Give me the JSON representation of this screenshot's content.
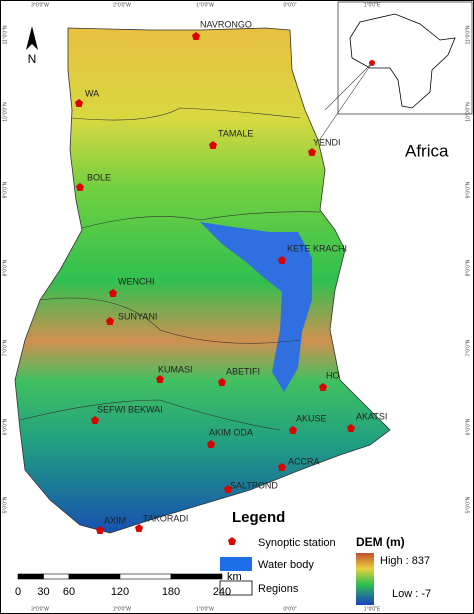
{
  "map": {
    "north": "N",
    "inset_label": "Africa",
    "stations": [
      "NAVRONGO",
      "WA",
      "TAMALE",
      "YENDI",
      "BOLE",
      "KETE KRACHI",
      "WENCHI",
      "SUNYANI",
      "KUMASI",
      "ABETIFI",
      "HO",
      "SEFWI BEKWAI",
      "AKATSI",
      "AKUSE",
      "AKIM ODA",
      "ACCRA",
      "SALTPOND",
      "AXIM",
      "TAKORADI"
    ],
    "legend": {
      "title": "Legend",
      "station": "Synoptic station",
      "water": "Water body",
      "regions": "Regions",
      "dem_title": "DEM (m)",
      "high": "High : 837",
      "low": "Low : -7"
    },
    "scale": {
      "ticks": [
        0,
        30,
        60,
        120,
        180,
        240
      ],
      "unit": "km"
    },
    "graticule": {
      "top": [
        "3°0'0\"W",
        "2°0'0\"W",
        "1°0'0\"W",
        "0°0'0\"",
        "1°0'0\"E"
      ],
      "left": [
        "11°0'0\"N",
        "10°0'0\"N",
        "9°0'0\"N",
        "8°0'0\"N",
        "7°0'0\"N",
        "6°0'0\"N",
        "5°0'0\"N"
      ]
    }
  }
}
